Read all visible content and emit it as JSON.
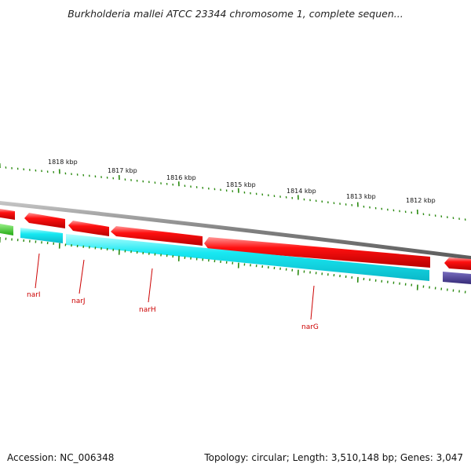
{
  "title": "Burkholderia mallei ATCC 23344 chromosome 1, complete sequen...",
  "scale_labels": [
    "1818 kbp",
    "1817 kbp",
    "1816 kbp",
    "1815 kbp",
    "1814 kbp",
    "1813 kbp",
    "1812 kbp"
  ],
  "gene_labels": [
    "narI",
    "narJ",
    "narH",
    "narG"
  ],
  "colors": {
    "backbone": "#8a8a8a",
    "forward_feature": "#ee0000",
    "reverse_feature": "#16d9e6",
    "other_feature_green": "#33bb22",
    "other_feature_purple": "#4a3f8c",
    "ticks": "#2a8a10",
    "gene_label": "#cc0000"
  },
  "footer": {
    "accession": "Accession: NC_006348",
    "info": "Topology: circular; Length: 3,510,148 bp; Genes: 3,047"
  }
}
